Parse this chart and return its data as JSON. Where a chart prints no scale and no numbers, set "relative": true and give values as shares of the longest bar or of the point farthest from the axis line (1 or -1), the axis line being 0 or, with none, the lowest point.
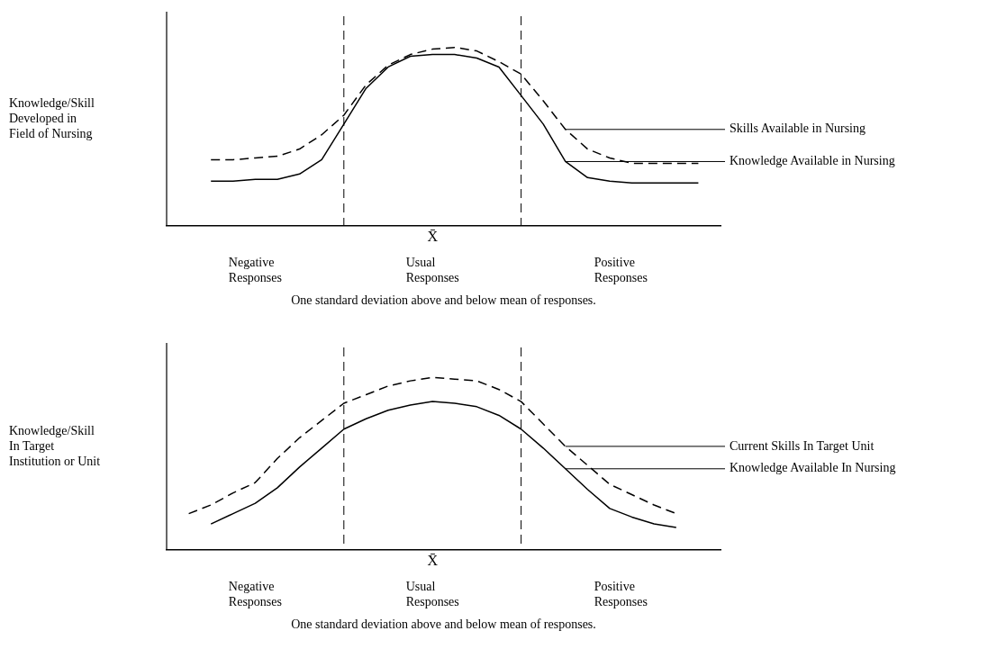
{
  "chart_data": [
    {
      "type": "line",
      "relative": true,
      "ylabel": "Knowledge/Skill\nDeveloped in\nField of Nursing",
      "marker": "none",
      "legend": false,
      "categories": [
        null,
        null,
        null,
        null,
        null,
        null,
        null,
        null,
        null,
        null,
        null,
        null,
        null,
        null,
        null,
        null,
        null,
        null,
        null,
        null,
        null,
        null,
        null,
        null,
        null,
        null
      ],
      "annotations": [
        "X̄",
        "Negative\nResponses",
        "Usual\nResponses",
        "Positive\nResponses",
        "One standard deviation above and below mean of responses."
      ],
      "series": [
        {
          "name": "Skills Available in Nursing",
          "color": "#000000",
          "line_style": "dashed",
          "values": [
            null,
            null,
            0.37,
            0.37,
            0.38,
            0.39,
            0.43,
            0.51,
            0.62,
            0.79,
            0.9,
            0.96,
            0.99,
            1,
            0.98,
            0.92,
            0.85,
            0.7,
            0.54,
            0.43,
            0.38,
            0.35,
            0.35,
            0.35,
            0.35,
            null
          ]
        },
        {
          "name": "Knowledge Available in Nursing",
          "color": "#000000",
          "line_style": "solid",
          "values": [
            null,
            null,
            0.25,
            0.25,
            0.26,
            0.26,
            0.29,
            0.37,
            0.57,
            0.77,
            0.89,
            0.95,
            0.96,
            0.96,
            0.94,
            0.89,
            0.73,
            0.57,
            0.36,
            0.27,
            0.25,
            0.24,
            0.24,
            0.24,
            0.24,
            null
          ]
        }
      ]
    },
    {
      "type": "line",
      "relative": true,
      "ylabel": "Knowledge/Skill\nIn Target\nInstitution or Unit",
      "marker": "none",
      "legend": false,
      "categories": [
        null,
        null,
        null,
        null,
        null,
        null,
        null,
        null,
        null,
        null,
        null,
        null,
        null,
        null,
        null,
        null,
        null,
        null,
        null,
        null,
        null,
        null,
        null,
        null,
        null,
        null
      ],
      "annotations": [
        "X̄",
        "Negative\nResponses",
        "Usual\nResponses",
        "Positive\nResponses",
        "One standard deviation above and below mean of responses."
      ],
      "series": [
        {
          "name": "Current Skills In Target Unit",
          "color": "#000000",
          "line_style": "dashed",
          "values": [
            null,
            0.21,
            0.26,
            0.33,
            0.39,
            0.53,
            0.65,
            0.75,
            0.85,
            0.9,
            0.95,
            0.98,
            1,
            0.99,
            0.98,
            0.93,
            0.86,
            0.73,
            0.6,
            0.49,
            0.38,
            0.32,
            0.26,
            0.21,
            null,
            null
          ]
        },
        {
          "name": "Knowledge Available In Nursing",
          "color": "#000000",
          "line_style": "solid",
          "values": [
            null,
            null,
            0.15,
            0.21,
            0.27,
            0.36,
            0.48,
            0.59,
            0.7,
            0.76,
            0.81,
            0.84,
            0.86,
            0.85,
            0.83,
            0.78,
            0.7,
            0.59,
            0.47,
            0.35,
            0.24,
            0.19,
            0.15,
            0.13,
            null,
            null
          ]
        }
      ]
    }
  ]
}
